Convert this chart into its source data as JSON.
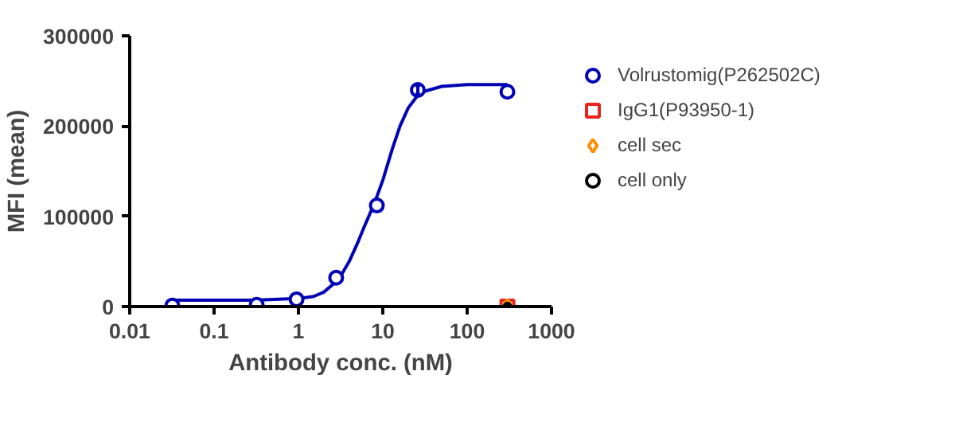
{
  "chart_data": {
    "type": "scatter",
    "xlabel": "Antibody conc. (nM)",
    "ylabel": "MFI (mean)",
    "log": "x",
    "xlim": [
      0.01,
      1000
    ],
    "xticks": [
      0.01,
      0.1,
      1,
      10,
      100,
      1000
    ],
    "ylim": [
      0,
      300000
    ],
    "yticks": [
      0,
      100000,
      200000,
      300000
    ],
    "grid": false,
    "legend": "right",
    "series": [
      {
        "type": "line",
        "color": "#0000b4",
        "marker": "none",
        "x": [
          0.032,
          0.1,
          0.3,
          1,
          1.5,
          2,
          3,
          4,
          5,
          6,
          8,
          10,
          13,
          16,
          20,
          25,
          30,
          50,
          100,
          300
        ],
        "values": [
          7000,
          7000,
          7000,
          9000,
          11000,
          16000,
          30000,
          50000,
          70000,
          88000,
          115000,
          140000,
          175000,
          200000,
          220000,
          232000,
          238000,
          244000,
          246000,
          246000
        ]
      },
      {
        "name": "Volrustomig(P262502C)",
        "color": "#0000b4",
        "marker": "circle",
        "x": [
          0.032,
          0.32,
          0.95,
          2.8,
          8.5,
          26,
          300
        ],
        "values": [
          1000,
          2000,
          8000,
          32000,
          112000,
          240000,
          238000
        ],
        "errors": [
          null,
          null,
          null,
          null,
          null,
          5000,
          null
        ]
      },
      {
        "name": "IgG1(P93950-1)",
        "color": "#e8241c",
        "marker": "square",
        "x": [
          300
        ],
        "values": [
          0
        ]
      },
      {
        "name": "cell sec",
        "color": "#ff8c00",
        "marker": "diamond",
        "x": [
          300
        ],
        "values": [
          0
        ]
      },
      {
        "name": "cell only",
        "color": "#000000",
        "marker": "circle",
        "x": [
          300
        ],
        "values": [
          0
        ]
      }
    ]
  }
}
